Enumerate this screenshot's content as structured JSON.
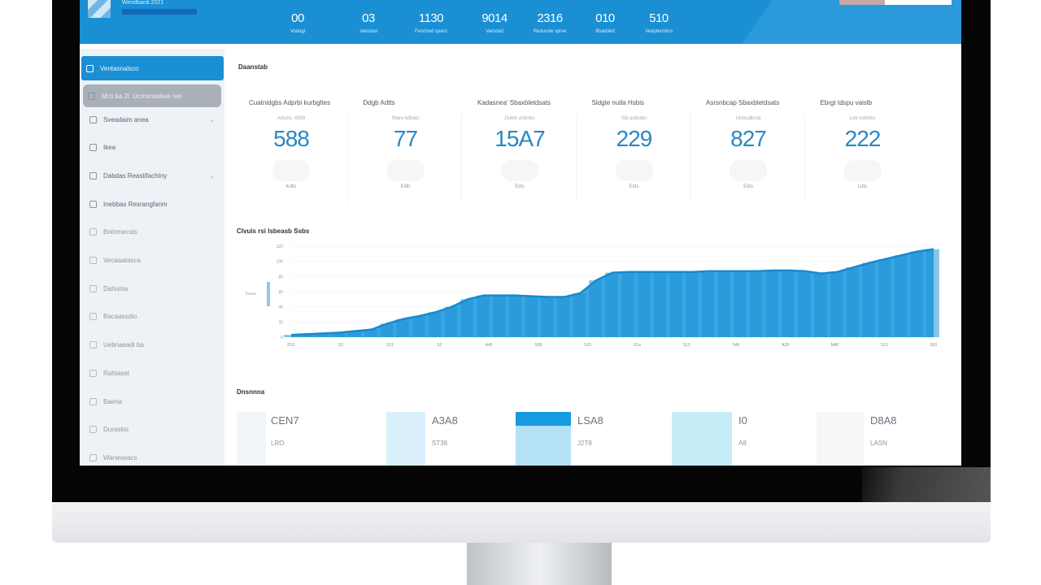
{
  "colors": {
    "accent": "#1a8fd3",
    "kpi_value": "#2a87c4",
    "chart_fill": "#2a9ee0",
    "bezel": "#050505"
  },
  "header": {
    "brand": "Wendbardi 2021",
    "stats": [
      {
        "value": "00",
        "label": "Vodagi"
      },
      {
        "value": "03",
        "label": "Vanstad"
      },
      {
        "value": "1130",
        "label": "Fesched sparo"
      },
      {
        "value": "9014",
        "label": "Vanstad"
      },
      {
        "value": "2316",
        "label": "Redunde spine"
      },
      {
        "value": "010",
        "label": "Bluebled"
      },
      {
        "value": "510",
        "label": "Veaptermino"
      }
    ]
  },
  "sidebar": {
    "items": [
      {
        "label": "Ventasnalsco",
        "icon": "home-icon",
        "state": "active"
      },
      {
        "label": "Mcs.ka.2l. Ucrnsnoskae ran",
        "icon": "list-icon",
        "state": "selected",
        "chevron": true
      },
      {
        "label": "Sveadaim anea",
        "icon": "folder-icon",
        "chevron": true
      },
      {
        "label": "Ikea",
        "icon": "folder-icon"
      },
      {
        "label": "Dabdas Reastifachtny",
        "icon": "calendar-icon",
        "chevron": true
      },
      {
        "label": "Inebbas Resrangfanm",
        "icon": "document-icon"
      },
      {
        "label": "Bntnmecsts",
        "icon": "chat-icon",
        "state": "dim"
      },
      {
        "label": "Vecaaatasca",
        "icon": "edit-icon",
        "state": "dim"
      },
      {
        "label": "Dahuma",
        "icon": "tag-icon",
        "state": "dim"
      },
      {
        "label": "Bacaassdio",
        "icon": "bag-icon",
        "state": "dim"
      },
      {
        "label": "Uebnaeadi ba",
        "icon": "file-icon",
        "state": "dim"
      },
      {
        "label": "Rahtaset",
        "icon": "clock-icon",
        "state": "dim"
      },
      {
        "label": "Baeria",
        "icon": "settings-icon",
        "state": "dim"
      },
      {
        "label": "Duraskis",
        "icon": "table-icon",
        "state": "dim"
      },
      {
        "label": "Waneseacs",
        "icon": "info-icon",
        "state": "dim"
      }
    ]
  },
  "overview_title": "Daanstab",
  "kpis": [
    {
      "title": "Cuatnidgbs Adprbi kurbgltes",
      "sub": "Adsnis. 8599",
      "value": "588",
      "foot": "Kdlis"
    },
    {
      "title": "Ddgb Adtts",
      "sub": "Ntare kdbats",
      "value": "77",
      "foot": "Eldh"
    },
    {
      "title": "Kadasnea' Sbaxbletdsats",
      "sub": "Dubiti uvbniks",
      "value": "15A7",
      "foot": "Edis"
    },
    {
      "title": "Sldgte nutla Hsbis",
      "sub": "Sla quibabs",
      "value": "229",
      "foot": "Elds"
    },
    {
      "title": "Asrsnbcap Sbaxbletdsats",
      "sub": "Ulcbcalbnia",
      "value": "827",
      "foot": "Edls"
    },
    {
      "title": "Ebrgt tdspu vaislb",
      "sub": "Luti uvbniks",
      "value": "222",
      "foot": "Ldts"
    }
  ],
  "chart_data": {
    "type": "area",
    "title": "Clvuis rsi lsbeasb Ssbs",
    "ylabel": "Tsuasi",
    "ylim": [
      0,
      120
    ],
    "yticks": [
      "0",
      "20",
      "40",
      "60",
      "80",
      "100",
      "120"
    ],
    "xticks": [
      "D13",
      "S3",
      "S31",
      "S2",
      "A45",
      "S08",
      "S15",
      "S1a",
      "S13",
      "S46",
      "A28",
      "M40",
      "S13",
      "S61"
    ],
    "grid": true,
    "values": [
      3,
      4,
      5,
      6,
      8,
      10,
      18,
      24,
      28,
      33,
      40,
      50,
      55,
      55,
      55,
      54,
      53,
      53,
      58,
      75,
      85,
      86,
      86,
      86,
      86,
      86,
      87,
      87,
      87,
      87,
      88,
      88,
      87,
      84,
      86,
      92,
      98,
      103,
      108,
      113,
      116
    ]
  },
  "bottom": {
    "title": "Dnsnnna",
    "items": [
      {
        "value": "CEN7",
        "sub": "LRO",
        "block": "#f2f5f8"
      },
      {
        "value": "A3A8",
        "sub": "ST38",
        "block": "#daf1fb"
      },
      {
        "value": "LSA8",
        "sub": "J2T8",
        "block": "#b4e2f6",
        "top": "#149be0"
      },
      {
        "value": "I0",
        "sub": "A8",
        "block": "#c6ecf8"
      },
      {
        "value": "D8A8",
        "sub": "LASN",
        "block": "#f4f6f8"
      }
    ]
  }
}
